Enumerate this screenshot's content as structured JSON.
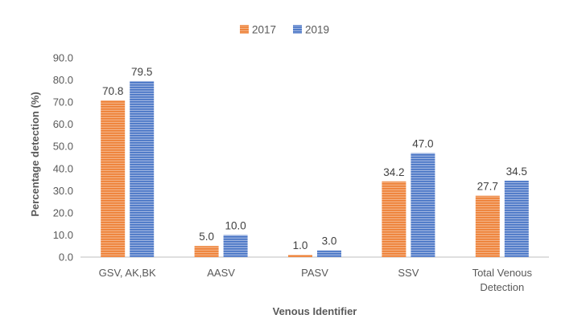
{
  "chart_data": {
    "type": "bar",
    "title": "",
    "xlabel": "Venous Identifier",
    "ylabel": "Percentage detection (%)",
    "ylim": [
      0,
      90
    ],
    "ytick_step": 10,
    "ytick_labels": [
      "0.0",
      "10.0",
      "20.0",
      "30.0",
      "40.0",
      "50.0",
      "60.0",
      "70.0",
      "80.0",
      "90.0"
    ],
    "categories": [
      [
        "GSV, AK,BK"
      ],
      [
        "AASV"
      ],
      [
        "PASV"
      ],
      [
        "SSV"
      ],
      [
        "Total Venous",
        "Detection"
      ]
    ],
    "series": [
      {
        "name": "2017",
        "color": "#ED7D31",
        "values": [
          70.8,
          5.0,
          1.0,
          34.2,
          27.7
        ],
        "labels": [
          "70.8",
          "5.0",
          "1.0",
          "34.2",
          "27.7"
        ]
      },
      {
        "name": "2019",
        "color": "#4472C4",
        "values": [
          79.5,
          10.0,
          3.0,
          47.0,
          34.5
        ],
        "labels": [
          "79.5",
          "10.0",
          "3.0",
          "47.0",
          "34.5"
        ]
      }
    ],
    "legend_position": "top-center",
    "grid": false
  }
}
